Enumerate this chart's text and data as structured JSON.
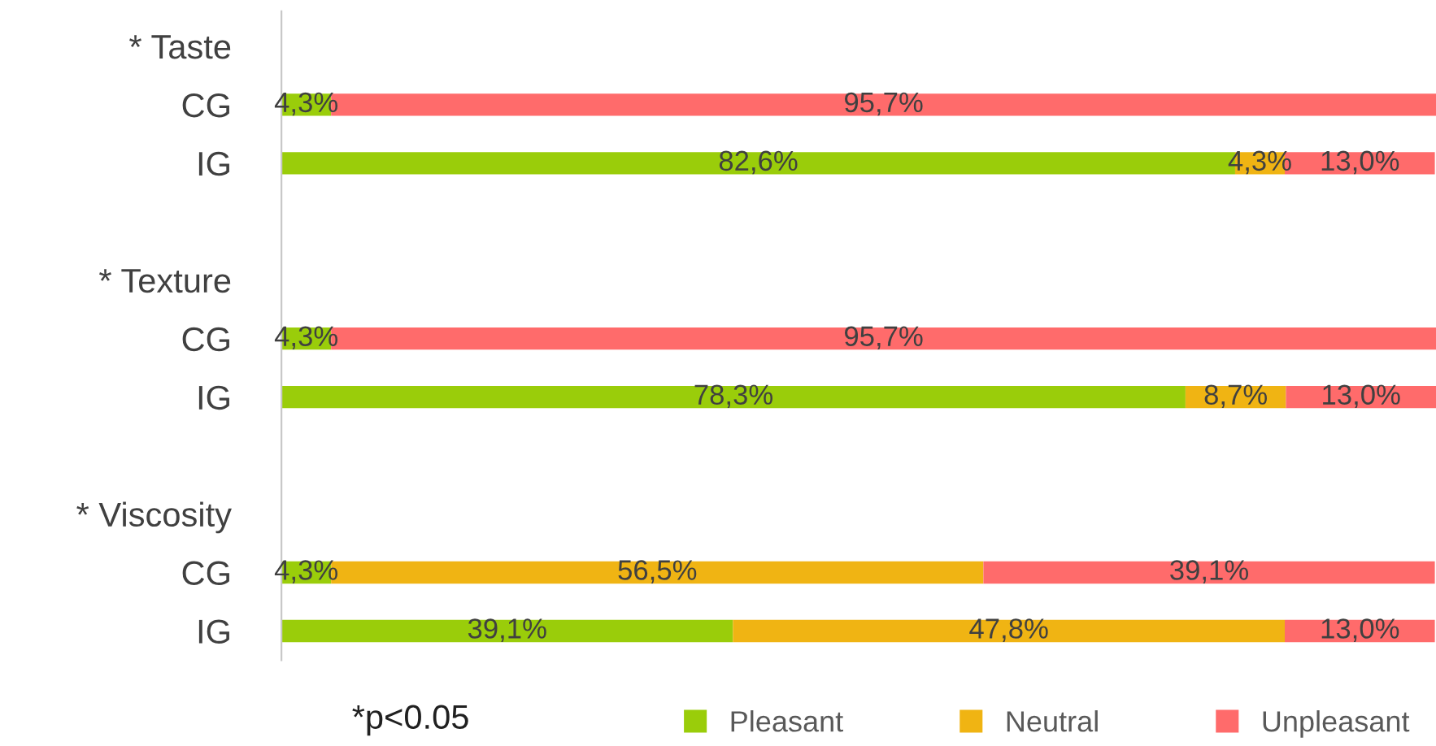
{
  "chart_data": {
    "type": "bar",
    "orientation": "horizontal",
    "stacked": true,
    "categories": [
      "* Taste",
      "CG",
      "IG",
      null,
      "* Texture",
      "CG",
      "IG",
      null,
      "* Viscosity",
      "CG",
      "IG"
    ],
    "series": [
      {
        "name": "Pleasant",
        "color": "#9acd0a",
        "values": [
          null,
          4.3,
          82.6,
          null,
          null,
          4.3,
          78.3,
          null,
          null,
          4.3,
          39.1
        ],
        "value_labels": [
          null,
          "4,3%",
          "82,6%",
          null,
          null,
          "4,3%",
          "78,3%",
          null,
          null,
          "4,3%",
          "39,1%"
        ]
      },
      {
        "name": "Neutral",
        "color": "#f0b413",
        "values": [
          null,
          0,
          4.3,
          null,
          null,
          0,
          8.7,
          null,
          null,
          56.5,
          47.8
        ],
        "value_labels": [
          null,
          null,
          "4,3%",
          null,
          null,
          null,
          "8,7%",
          null,
          null,
          "56,5%",
          "47,8%"
        ]
      },
      {
        "name": "Unpleasant",
        "color": "#ff6b6b",
        "values": [
          null,
          95.7,
          13.0,
          null,
          null,
          95.7,
          13.0,
          null,
          null,
          39.1,
          13.0
        ],
        "value_labels": [
          null,
          "95,7%",
          "13,0%",
          null,
          null,
          "95,7%",
          "13,0%",
          null,
          null,
          "39,1%",
          "13,0%"
        ]
      }
    ],
    "legend": "bottom right",
    "annotations": [
      "*p<0.05"
    ]
  }
}
